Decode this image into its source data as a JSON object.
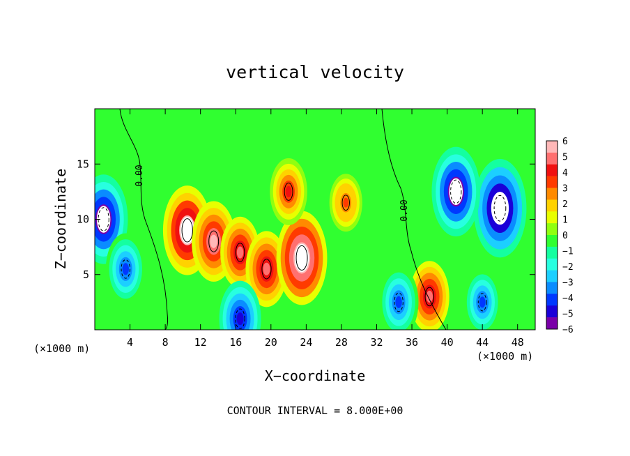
{
  "chart_data": {
    "type": "heatmap",
    "title": "vertical velocity",
    "xlabel": "X−coordinate",
    "ylabel": "Z−coordinate",
    "x_unit_label": "(×1000 m)",
    "footer": "CONTOUR INTERVAL = 8.000E+00",
    "xlim": [
      0,
      50
    ],
    "ylim": [
      0,
      20
    ],
    "x_ticks": [
      4,
      8,
      12,
      16,
      20,
      24,
      28,
      32,
      36,
      40,
      44,
      48
    ],
    "y_ticks": [
      5,
      10,
      15
    ],
    "contour_labels": [
      "0.00",
      "0.00"
    ],
    "colorbar": {
      "min": -6,
      "max": 6,
      "ticks": [
        6,
        5,
        4,
        3,
        2,
        1,
        0,
        -1,
        -2,
        -3,
        -4,
        -5,
        -6
      ],
      "colors": [
        "#7a00a8",
        "#1a00d8",
        "#0038ff",
        "#0a8cff",
        "#1ccfff",
        "#28ffe0",
        "#14ffa0",
        "#30ff30",
        "#90ff10",
        "#e8ff00",
        "#ffd200",
        "#ff8a00",
        "#ff3a00",
        "#f01010",
        "#ff7070",
        "#ffb8b8"
      ]
    },
    "features": [
      {
        "kind": "updraft",
        "x": 10.5,
        "z": 9.0,
        "w": 6.5
      },
      {
        "kind": "updraft",
        "x": 13.5,
        "z": 8.0,
        "w": 5.5
      },
      {
        "kind": "updraft",
        "x": 16.5,
        "z": 7.0,
        "w": 4.5
      },
      {
        "kind": "updraft",
        "x": 19.5,
        "z": 5.5,
        "w": 5.0
      },
      {
        "kind": "updraft",
        "x": 23.5,
        "z": 6.5,
        "w": 7.0
      },
      {
        "kind": "updraft",
        "x": 22.0,
        "z": 12.5,
        "w": 4.0
      },
      {
        "kind": "updraft",
        "x": 28.5,
        "z": 11.5,
        "w": 3.0
      },
      {
        "kind": "updraft",
        "x": 38.0,
        "z": 3.0,
        "w": 4.5
      },
      {
        "kind": "downdraft",
        "x": 46.0,
        "z": 11.0,
        "w": -7.5
      },
      {
        "kind": "downdraft",
        "x": 41.0,
        "z": 12.5,
        "w": -6.5
      },
      {
        "kind": "downdraft",
        "x": 1.0,
        "z": 10.0,
        "w": -6.5
      },
      {
        "kind": "downdraft",
        "x": 3.5,
        "z": 5.5,
        "w": -4.5
      },
      {
        "kind": "downdraft",
        "x": 16.5,
        "z": 1.0,
        "w": -5.0
      },
      {
        "kind": "downdraft",
        "x": 34.5,
        "z": 2.5,
        "w": -4.5
      },
      {
        "kind": "downdraft",
        "x": 44.0,
        "z": 2.5,
        "w": -4.0
      }
    ]
  }
}
